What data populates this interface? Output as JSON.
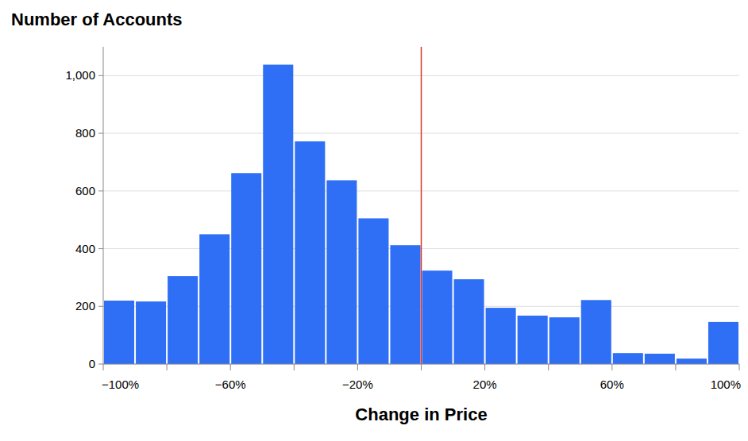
{
  "chart_data": {
    "type": "histogram",
    "title": "Number of Accounts",
    "x_label": "Change in Price",
    "bins": [
      -100,
      -90,
      -80,
      -70,
      -60,
      -50,
      -40,
      -30,
      -20,
      -10,
      0,
      10,
      20,
      30,
      40,
      50,
      60,
      70,
      80,
      90,
      100
    ],
    "values": [
      220,
      217,
      305,
      450,
      662,
      1038,
      772,
      637,
      505,
      412,
      324,
      294,
      195,
      168,
      162,
      222,
      38,
      36,
      19,
      146
    ],
    "color": "#2f6ff6",
    "xlim": [
      -100,
      100
    ],
    "xticks": [
      {
        "value": -100,
        "label": "−100%"
      },
      {
        "value": -80,
        "label": null
      },
      {
        "value": -60,
        "label": "−60%"
      },
      {
        "value": -40,
        "label": null
      },
      {
        "value": -20,
        "label": "−20%"
      },
      {
        "value": 0,
        "label": null
      },
      {
        "value": 20,
        "label": "20%"
      },
      {
        "value": 40,
        "label": null
      },
      {
        "value": 60,
        "label": "60%"
      },
      {
        "value": 80,
        "label": null
      },
      {
        "value": 100,
        "label": "100%"
      }
    ],
    "ylim": [
      0,
      1100
    ],
    "yticks": [
      0,
      200,
      400,
      600,
      800,
      {
        "value": 1000,
        "label": "1,000"
      }
    ],
    "grid": true,
    "vline": {
      "x": 0,
      "color": "#d9342b"
    }
  }
}
